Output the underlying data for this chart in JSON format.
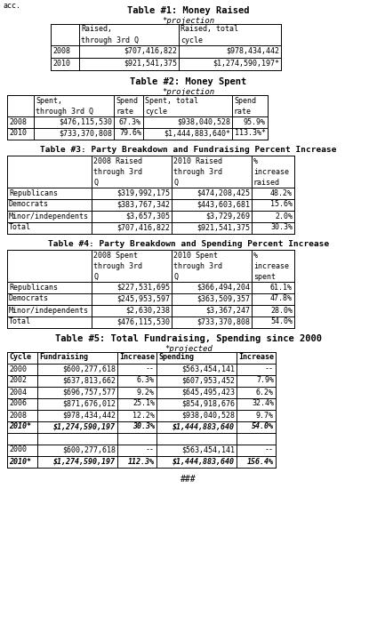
{
  "acc_label": "acc.",
  "table1_title": "Table #1: Money Raised",
  "table1_sub": "*projection",
  "table2_title": "Table #2: Money Spent",
  "table2_sub": "*projection",
  "table3_title": "Table #3: Party Breakdown and Fundraising Percent Increase",
  "table4_title": "Table #4: Party Breakdown and Spending Percent Increase",
  "table5_title": "Table #5: Total Fundraising, Spending since 2000",
  "table5_sub": "*projected",
  "footer": "###",
  "t1_headers": [
    "",
    "Raised,\nthrough 3rd Q",
    "Raised, total\ncycle"
  ],
  "t1_rows": [
    [
      "2008",
      "$707,416,822",
      "$978,434,442"
    ],
    [
      "2010",
      "$921,541,375",
      "$1,274,590,197*"
    ]
  ],
  "t2_headers": [
    "",
    "Spent,\nthrough 3rd Q",
    "Spend\nrate",
    "Spent, total\ncycle",
    "Spend\nrate"
  ],
  "t2_rows": [
    [
      "2008",
      "$476,115,530",
      "67.3%",
      "$938,040,528",
      "95.9%"
    ],
    [
      "2010",
      "$733,370,808",
      "79.6%",
      "$1,444,883,640*",
      "113.3%*"
    ]
  ],
  "t3_headers": [
    "",
    "2008 Raised\nthrough 3rd\nQ",
    "2010 Raised\nthrough 3rd\nQ",
    "%\nincrease\nraised"
  ],
  "t3_rows": [
    [
      "Republicans",
      "$319,992,175",
      "$474,208,425",
      "48.2%"
    ],
    [
      "Democrats",
      "$383,767,342",
      "$443,603,681",
      "15.6%"
    ],
    [
      "Minor/independents",
      "$3,657,305",
      "$3,729,269",
      "2.0%"
    ],
    [
      "Total",
      "$707,416,822",
      "$921,541,375",
      "30.3%"
    ]
  ],
  "t4_headers": [
    "",
    "2008 Spent\nthrough 3rd\nQ",
    "2010 Spent\nthrough 3rd\nQ",
    "%\nincrease\nspent"
  ],
  "t4_rows": [
    [
      "Republicans",
      "$227,531,695",
      "$366,494,204",
      "61.1%"
    ],
    [
      "Democrats",
      "$245,953,597",
      "$363,509,357",
      "47.8%"
    ],
    [
      "Minor/independents",
      "$2,630,238",
      "$3,367,247",
      "28.0%"
    ],
    [
      "Total",
      "$476,115,530",
      "$733,370,808",
      "54.0%"
    ]
  ],
  "t5_headers": [
    "Cycle",
    "Fundraising",
    "Increase",
    "Spending",
    "Increase"
  ],
  "t5_rows": [
    [
      "2000",
      "$600,277,618",
      "--",
      "$563,454,141",
      "--"
    ],
    [
      "2002",
      "$637,813,662",
      "6.3%",
      "$607,953,452",
      "7.9%"
    ],
    [
      "2004",
      "$696,757,577",
      "9.2%",
      "$645,495,423",
      "6.2%"
    ],
    [
      "2006",
      "$871,676,012",
      "25.1%",
      "$854,918,676",
      "32.4%"
    ],
    [
      "2008",
      "$978,434,442",
      "12.2%",
      "$938,040,528",
      "9.7%"
    ],
    [
      "2010*",
      "$1,274,590,197",
      "30.3%",
      "$1,444,883,640",
      "54.0%"
    ],
    [
      "",
      "",
      "",
      "",
      ""
    ],
    [
      "2000",
      "$600,277,618",
      "--",
      "$563,454,141",
      "--"
    ],
    [
      "2010*",
      "$1,274,590,197",
      "112.3%",
      "$1,444,883,640",
      "156.4%"
    ]
  ],
  "t5_bold_data_rows": [
    5,
    8
  ]
}
